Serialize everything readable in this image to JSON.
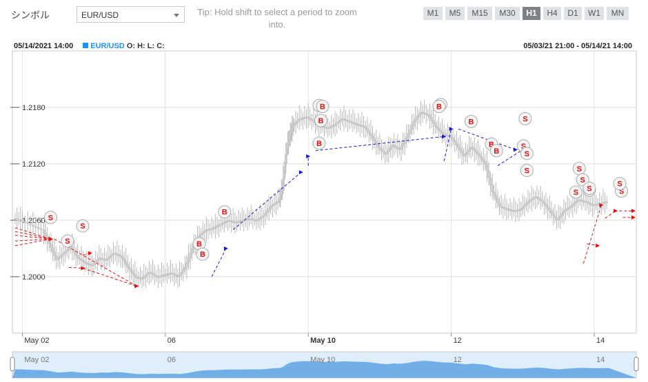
{
  "header": {
    "symbol_label": "シンボル",
    "symbol_value": "EUR/USD",
    "tip": "Tip: Hold shift to select a period to zoom into.",
    "timeframes": [
      "M1",
      "M5",
      "M15",
      "M30",
      "H1",
      "H4",
      "D1",
      "W1",
      "MN"
    ],
    "active_timeframe": "H1"
  },
  "info": {
    "datetime": "05/14/2021 14:00",
    "symbol": "EUR/USD",
    "ohlc": "O: H: L: C:",
    "range": "05/03/21 21:00 - 05/14/21 14:00"
  },
  "colors": {
    "buy": "#1515d6",
    "sell": "#e01010",
    "candle": "#c8c8c8",
    "navigator": "#5ea2e4"
  },
  "chart_data": {
    "type": "candlestick",
    "ylim": [
      1.194,
      1.224
    ],
    "yticks": [
      {
        "value": 1.2,
        "label": "1.2000"
      },
      {
        "value": 1.206,
        "label": "1.2060"
      },
      {
        "value": 1.212,
        "label": "1.2120"
      },
      {
        "value": 1.218,
        "label": "1.2180"
      }
    ],
    "xticks": [
      {
        "x": 0.2,
        "label": "May 02"
      },
      {
        "x": 4.2,
        "label": "06"
      },
      {
        "x": 8.2,
        "label": "May 10"
      },
      {
        "x": 12.2,
        "label": "12"
      },
      {
        "x": 16.2,
        "label": "14"
      }
    ],
    "xlim": [
      0,
      17.3
    ],
    "price_points": [
      [
        0.0,
        1.2062
      ],
      [
        0.2,
        1.206
      ],
      [
        0.5,
        1.2055
      ],
      [
        0.8,
        1.205
      ],
      [
        1.0,
        1.2035
      ],
      [
        1.2,
        1.2018
      ],
      [
        1.4,
        1.2025
      ],
      [
        1.6,
        1.2032
      ],
      [
        1.8,
        1.202
      ],
      [
        2.0,
        1.2015
      ],
      [
        2.2,
        1.2012
      ],
      [
        2.4,
        1.202
      ],
      [
        2.6,
        1.2018
      ],
      [
        2.8,
        1.2025
      ],
      [
        3.0,
        1.2022
      ],
      [
        3.2,
        1.201
      ],
      [
        3.4,
        1.2
      ],
      [
        3.6,
        1.1998
      ],
      [
        3.8,
        1.2005
      ],
      [
        4.0,
        1.2
      ],
      [
        4.2,
        1.2002
      ],
      [
        4.4,
        1.2004
      ],
      [
        4.6,
        1.2
      ],
      [
        4.8,
        1.201
      ],
      [
        5.0,
        1.203
      ],
      [
        5.2,
        1.2044
      ],
      [
        5.4,
        1.205
      ],
      [
        5.6,
        1.2052
      ],
      [
        5.8,
        1.2056
      ],
      [
        6.0,
        1.206
      ],
      [
        6.2,
        1.2058
      ],
      [
        6.4,
        1.206
      ],
      [
        6.6,
        1.2062
      ],
      [
        6.8,
        1.206
      ],
      [
        7.0,
        1.2065
      ],
      [
        7.2,
        1.2075
      ],
      [
        7.4,
        1.208
      ],
      [
        7.5,
        1.2095
      ],
      [
        7.6,
        1.213
      ],
      [
        7.7,
        1.215
      ],
      [
        7.8,
        1.216
      ],
      [
        8.0,
        1.2168
      ],
      [
        8.2,
        1.217
      ],
      [
        8.4,
        1.2165
      ],
      [
        8.6,
        1.216
      ],
      [
        8.8,
        1.2158
      ],
      [
        9.0,
        1.2162
      ],
      [
        9.2,
        1.2168
      ],
      [
        9.4,
        1.2165
      ],
      [
        9.6,
        1.2162
      ],
      [
        9.8,
        1.216
      ],
      [
        10.0,
        1.215
      ],
      [
        10.2,
        1.2138
      ],
      [
        10.4,
        1.213
      ],
      [
        10.6,
        1.214
      ],
      [
        10.8,
        1.2135
      ],
      [
        11.0,
        1.2148
      ],
      [
        11.2,
        1.2165
      ],
      [
        11.4,
        1.2175
      ],
      [
        11.6,
        1.2172
      ],
      [
        11.8,
        1.216
      ],
      [
        12.0,
        1.2152
      ],
      [
        12.2,
        1.215
      ],
      [
        12.4,
        1.214
      ],
      [
        12.6,
        1.2128
      ],
      [
        12.8,
        1.2138
      ],
      [
        13.0,
        1.213
      ],
      [
        13.2,
        1.212
      ],
      [
        13.4,
        1.209
      ],
      [
        13.6,
        1.2075
      ],
      [
        13.8,
        1.2072
      ],
      [
        14.0,
        1.207
      ],
      [
        14.2,
        1.2072
      ],
      [
        14.4,
        1.208
      ],
      [
        14.6,
        1.2085
      ],
      [
        14.8,
        1.208
      ],
      [
        15.0,
        1.207
      ],
      [
        15.2,
        1.206
      ],
      [
        15.4,
        1.207
      ],
      [
        15.6,
        1.2075
      ],
      [
        15.8,
        1.2082
      ],
      [
        16.0,
        1.208
      ],
      [
        16.2,
        1.2076
      ],
      [
        16.4,
        1.2078
      ],
      [
        16.6,
        1.208
      ]
    ],
    "markers": [
      {
        "type": "S",
        "x": 1.05,
        "y": 1.2063
      },
      {
        "type": "S",
        "x": 1.55,
        "y": 1.2038
      },
      {
        "type": "S",
        "x": 2.0,
        "y": 1.2054
      },
      {
        "type": "B",
        "x": 5.45,
        "y": 1.2035
      },
      {
        "type": "B",
        "x": 5.55,
        "y": 1.2024
      },
      {
        "type": "B",
        "x": 6.2,
        "y": 1.2069
      },
      {
        "type": "B",
        "x": 9.0,
        "y": 1.2182
      },
      {
        "type": "B",
        "x": 9.1,
        "y": 1.2181
      },
      {
        "type": "B",
        "x": 9.05,
        "y": 1.2166
      },
      {
        "type": "B",
        "x": 9.0,
        "y": 1.2142
      },
      {
        "type": "B",
        "x": 12.6,
        "y": 1.2183
      },
      {
        "type": "B",
        "x": 12.55,
        "y": 1.2181
      },
      {
        "type": "B",
        "x": 13.5,
        "y": 1.2165
      },
      {
        "type": "B",
        "x": 14.1,
        "y": 1.2141
      },
      {
        "type": "B",
        "x": 14.25,
        "y": 1.2134
      },
      {
        "type": "S",
        "x": 15.1,
        "y": 1.2168
      },
      {
        "type": "S",
        "x": 15.05,
        "y": 1.2139
      },
      {
        "type": "S",
        "x": 15.15,
        "y": 1.2131
      },
      {
        "type": "S",
        "x": 15.15,
        "y": 1.2113
      },
      {
        "type": "S",
        "x": 16.7,
        "y": 1.2115
      },
      {
        "type": "S",
        "x": 16.8,
        "y": 1.2103
      },
      {
        "type": "S",
        "x": 16.6,
        "y": 1.209
      },
      {
        "type": "B",
        "x": 17.0,
        "y": 1.2092
      },
      {
        "type": "S",
        "x": 17.0,
        "y": 1.2094
      },
      {
        "type": "S",
        "x": 17.95,
        "y": 1.2091
      },
      {
        "type": "S",
        "x": 17.9,
        "y": 1.2099
      }
    ],
    "sell_lines": [
      [
        [
          0.0,
          1.2052
        ],
        [
          1.0,
          1.204
        ]
      ],
      [
        [
          0.0,
          1.2048
        ],
        [
          1.0,
          1.204
        ]
      ],
      [
        [
          0.0,
          1.2044
        ],
        [
          1.0,
          1.204
        ]
      ],
      [
        [
          0.0,
          1.2038
        ],
        [
          1.0,
          1.204
        ]
      ],
      [
        [
          0.0,
          1.2033
        ],
        [
          1.0,
          1.204
        ]
      ],
      [
        [
          1.1,
          1.204
        ],
        [
          3.4,
          1.199
        ]
      ],
      [
        [
          1.5,
          1.201
        ],
        [
          1.9,
          1.2009
        ]
      ],
      [
        [
          1.9,
          1.2023
        ],
        [
          2.1,
          1.2025
        ]
      ],
      [
        [
          1.9,
          1.2009
        ],
        [
          3.4,
          1.199
        ]
      ],
      [
        [
          16.0,
          1.2035
        ],
        [
          16.3,
          1.2033
        ]
      ],
      [
        [
          15.9,
          1.2014
        ],
        [
          16.4,
          1.2076
        ]
      ],
      [
        [
          16.5,
          1.2062
        ],
        [
          16.8,
          1.207
        ]
      ],
      [
        [
          16.9,
          1.207
        ],
        [
          17.3,
          1.207
        ]
      ],
      [
        [
          17.0,
          1.2063
        ],
        [
          17.3,
          1.2063
        ]
      ]
    ],
    "buy_lines": [
      [
        [
          5.5,
          1.2
        ],
        [
          5.9,
          1.203
        ]
      ],
      [
        [
          6.1,
          1.205
        ],
        [
          8.0,
          1.2111
        ]
      ],
      [
        [
          8.2,
          1.2118
        ],
        [
          8.2,
          1.2128
        ]
      ],
      [
        [
          8.4,
          1.2134
        ],
        [
          12.0,
          1.2149
        ]
      ],
      [
        [
          12.0,
          1.2123
        ],
        [
          12.2,
          1.2157
        ]
      ],
      [
        [
          12.4,
          1.2157
        ],
        [
          14.0,
          1.2135
        ]
      ],
      [
        [
          13.5,
          1.2118
        ],
        [
          14.2,
          1.2135
        ]
      ]
    ]
  }
}
